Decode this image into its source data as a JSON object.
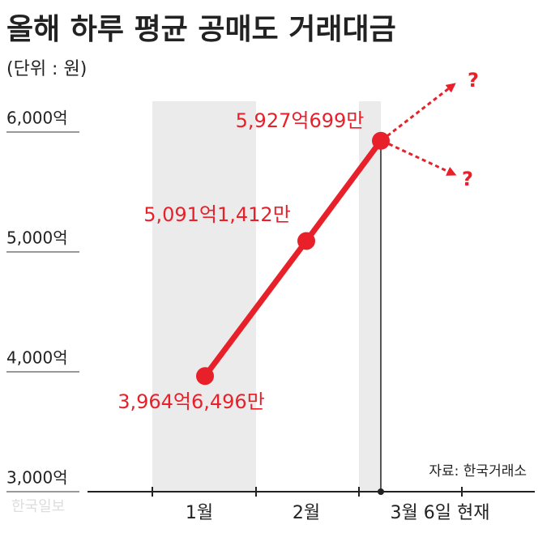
{
  "chart_data": {
    "type": "line",
    "title": "올해 하루 평균 공매도 거래대금",
    "subtitle": "(단위 : 원)",
    "categories": [
      "1월",
      "2월",
      "3월 6일 현재"
    ],
    "values": [
      3964.6496,
      5091.1412,
      5927.0699
    ],
    "value_labels": [
      "3,964억6,496만",
      "5,091억1,412만",
      "5,927억699만"
    ],
    "color": "#e8202a",
    "ylim": [
      3000,
      6000
    ],
    "yticks": [
      {
        "value": 3000,
        "label": "3,000억"
      },
      {
        "value": 4000,
        "label": "4,000억"
      },
      {
        "value": 5000,
        "label": "5,000억"
      },
      {
        "value": 6000,
        "label": "6,000억"
      }
    ],
    "annotations": [
      "?",
      "?"
    ],
    "source": "자료: 한국거래소",
    "credit": "한국일보"
  }
}
